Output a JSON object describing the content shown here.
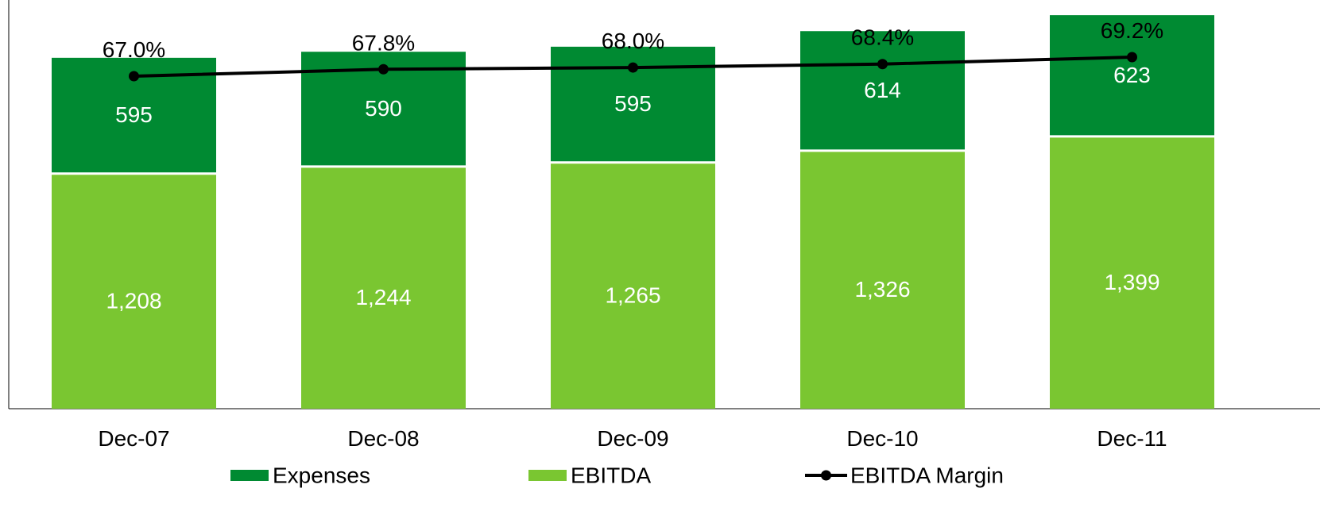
{
  "chart_data": {
    "type": "bar",
    "stacked": true,
    "categories": [
      "Dec-07",
      "Dec-08",
      "Dec-09",
      "Dec-10",
      "Dec-11"
    ],
    "series": [
      {
        "name": "EBITDA",
        "values": [
          1208,
          1244,
          1265,
          1326,
          1399
        ],
        "labels": [
          "1,208",
          "1,244",
          "1,265",
          "1,326",
          "1,399"
        ],
        "color": "#7ac631"
      },
      {
        "name": "Expenses",
        "values": [
          595,
          590,
          595,
          614,
          623
        ],
        "labels": [
          "595",
          "590",
          "595",
          "614",
          "623"
        ],
        "color": "#008a32"
      }
    ],
    "line_series": {
      "name": "EBITDA Margin",
      "values": [
        67.0,
        67.8,
        68.0,
        68.4,
        69.2
      ],
      "labels": [
        "67.0%",
        "67.8%",
        "68.0%",
        "68.4%",
        "69.2%"
      ],
      "color": "#000000"
    },
    "ylim": [
      0,
      2100
    ],
    "grid": false,
    "legend_placement": "bottom",
    "legend": [
      {
        "name": "Expenses",
        "kind": "bar",
        "color": "#008a32"
      },
      {
        "name": "EBITDA",
        "kind": "bar",
        "color": "#7ac631"
      },
      {
        "name": "EBITDA Margin",
        "kind": "line",
        "color": "#000000"
      }
    ]
  }
}
